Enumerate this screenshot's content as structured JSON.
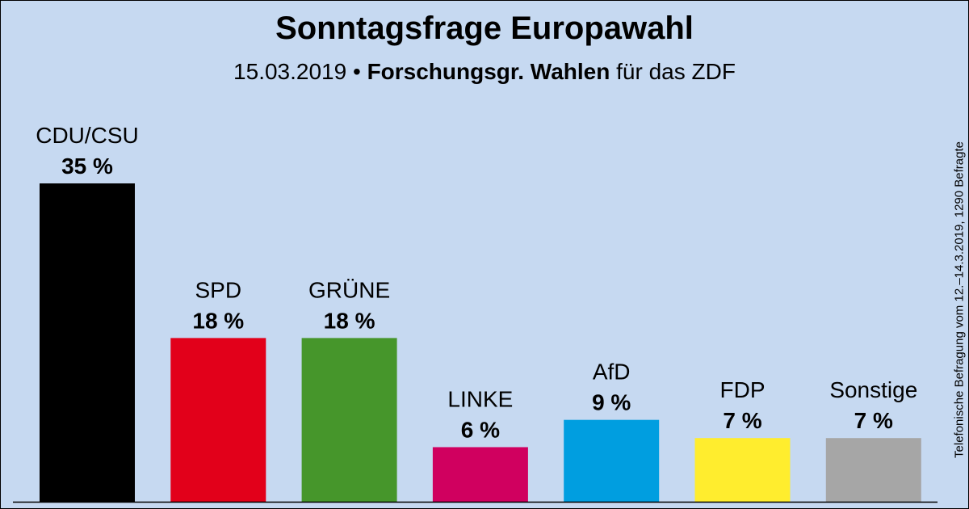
{
  "subtitle": {
    "date": "15.03.2019",
    "bullet": "•",
    "institute": "Forschungsgr. Wahlen",
    "client": "für das ZDF"
  },
  "note": "Telefonische Befragung vom 12.–14.3.2019, 1290 Befragte",
  "chart_data": {
    "type": "bar",
    "title": "Sonntagsfrage Europawahl",
    "categories": [
      "CDU/CSU",
      "SPD",
      "GRÜNE",
      "LINKE",
      "AfD",
      "FDP",
      "Sonstige"
    ],
    "values": [
      35,
      18,
      18,
      6,
      9,
      7,
      7
    ],
    "value_labels": [
      "35 %",
      "18 %",
      "18 %",
      "6 %",
      "9 %",
      "7 %",
      "7 %"
    ],
    "colors": [
      "#000000",
      "#e2001a",
      "#46962b",
      "#d0005f",
      "#009ee0",
      "#ffed2e",
      "#a6a6a6"
    ],
    "unit": "%",
    "ylim": [
      0,
      35
    ],
    "xlabel": "",
    "ylabel": "",
    "grid": false
  }
}
